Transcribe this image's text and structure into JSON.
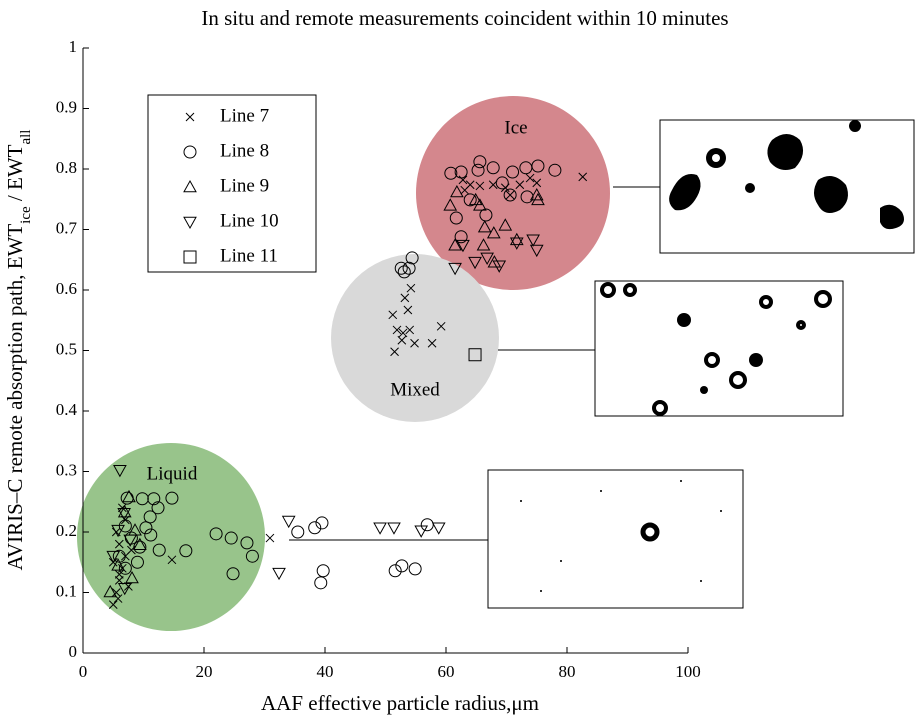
{
  "chart_data": {
    "type": "scatter",
    "title": "In situ and remote measurements coincident within 10 minutes",
    "xlabel": "AAF effective particle radius,μm",
    "ylabel": [
      "AVIRIS–C remote absorption path,  EWT",
      "ice",
      " / EWT",
      "all"
    ],
    "xlim": [
      0,
      100
    ],
    "ylim": [
      0,
      1
    ],
    "xticks": [
      0,
      20,
      40,
      60,
      80,
      100
    ],
    "yticks": [
      0,
      0.1,
      0.2,
      0.3,
      0.4,
      0.5,
      0.6,
      0.7,
      0.8,
      0.9,
      1
    ],
    "legend": "upper left",
    "annotations": [
      {
        "text": "Ice",
        "color": "#d4878d"
      },
      {
        "text": "Mixed",
        "color": "#d9d9d9"
      },
      {
        "text": "Liquid",
        "color": "#98c48b"
      }
    ],
    "series": [
      {
        "name": "Line 7",
        "marker": "x",
        "color": "#000000",
        "x": [
          62.8,
          64.0,
          65.6,
          67.8,
          69.8,
          72.2,
          73.9,
          75.0,
          82.6,
          70.6,
          63.1,
          54.2,
          53.2,
          53.7,
          51.2,
          51.9,
          52.9,
          54.0,
          52.7,
          54.8,
          51.5,
          57.7,
          59.2,
          30.9,
          14.7,
          5.0,
          5.5,
          6.0,
          6.5,
          7.0,
          6.0,
          5.5,
          7.0,
          6.5,
          5.0,
          8.0,
          6.0,
          7.5,
          5.8
        ],
        "values": [
          0.782,
          0.774,
          0.772,
          0.774,
          0.769,
          0.774,
          0.785,
          0.777,
          0.787,
          0.757,
          0.765,
          0.603,
          0.587,
          0.567,
          0.559,
          0.534,
          0.529,
          0.534,
          0.517,
          0.512,
          0.498,
          0.512,
          0.54,
          0.19,
          0.154,
          0.08,
          0.1,
          0.12,
          0.14,
          0.16,
          0.18,
          0.2,
          0.22,
          0.24,
          0.15,
          0.17,
          0.13,
          0.11,
          0.09
        ]
      },
      {
        "name": "Line 8",
        "marker": "o",
        "color": "#000000",
        "x": [
          60.8,
          65.3,
          67.8,
          71.0,
          73.2,
          75.2,
          78.0,
          62.5,
          65.6,
          69.3,
          61.7,
          64.0,
          66.6,
          70.6,
          73.4,
          62.5,
          53.9,
          54.4,
          53.1,
          52.6,
          7.3,
          9.8,
          11.7,
          14.7,
          11.1,
          12.4,
          10.4,
          11.2,
          9.4,
          12.6,
          17.0,
          22.0,
          24.5,
          27.1,
          28.0,
          24.8,
          35.5,
          38.3,
          39.5,
          39.7,
          39.3,
          51.6,
          52.7,
          54.9,
          56.9,
          7.0,
          6.0,
          8.0,
          7.0,
          9.0
        ],
        "values": [
          0.793,
          0.798,
          0.802,
          0.795,
          0.802,
          0.805,
          0.798,
          0.795,
          0.812,
          0.777,
          0.719,
          0.749,
          0.724,
          0.757,
          0.754,
          0.688,
          0.636,
          0.653,
          0.63,
          0.636,
          0.256,
          0.255,
          0.255,
          0.256,
          0.225,
          0.24,
          0.207,
          0.195,
          0.175,
          0.17,
          0.169,
          0.197,
          0.19,
          0.182,
          0.16,
          0.131,
          0.2,
          0.207,
          0.215,
          0.136,
          0.116,
          0.136,
          0.144,
          0.139,
          0.212,
          0.14,
          0.16,
          0.19,
          0.21,
          0.15
        ]
      },
      {
        "name": "Line 9",
        "marker": "^",
        "color": "#000000",
        "x": [
          60.7,
          61.8,
          64.9,
          66.4,
          67.9,
          69.8,
          71.7,
          75.0,
          61.5,
          66.2,
          68.0,
          65.6,
          75.2,
          7.6,
          6.9,
          4.5,
          9.4,
          5.8,
          8.1,
          8.6
        ],
        "values": [
          0.74,
          0.762,
          0.749,
          0.704,
          0.694,
          0.707,
          0.683,
          0.757,
          0.674,
          0.674,
          0.646,
          0.74,
          0.749,
          0.258,
          0.233,
          0.101,
          0.179,
          0.145,
          0.124,
          0.203
        ]
      },
      {
        "name": "Line 10",
        "marker": "v",
        "color": "#000000",
        "x": [
          61.5,
          62.8,
          64.8,
          66.8,
          68.8,
          75.0,
          71.7,
          74.4,
          6.1,
          6.8,
          5.8,
          7.8,
          5.0,
          6.9,
          34.0,
          32.4,
          49.1,
          51.4,
          55.9,
          58.8
        ],
        "values": [
          0.636,
          0.674,
          0.646,
          0.653,
          0.64,
          0.666,
          0.678,
          0.683,
          0.302,
          0.231,
          0.203,
          0.187,
          0.16,
          0.107,
          0.218,
          0.132,
          0.207,
          0.207,
          0.202,
          0.207
        ]
      },
      {
        "name": "Line 11",
        "marker": "s",
        "color": "#000000",
        "x": [
          64.8
        ],
        "values": [
          0.493
        ]
      }
    ]
  }
}
